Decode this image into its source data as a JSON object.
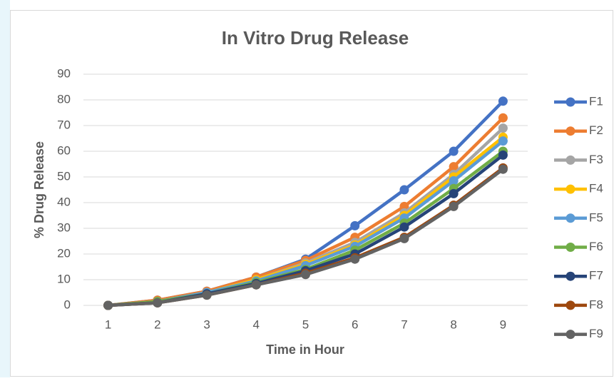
{
  "chart_data": {
    "type": "line",
    "title": "In Vitro Drug Release",
    "x_label": "Time in Hour",
    "y_label": "% Drug Release",
    "x": [
      1,
      2,
      3,
      4,
      5,
      6,
      7,
      8,
      9
    ],
    "xlim": [
      0.5,
      9.5
    ],
    "xticks": [
      1,
      2,
      3,
      4,
      5,
      6,
      7,
      8,
      9
    ],
    "ylim": [
      0,
      90
    ],
    "yticks": [
      0,
      10,
      20,
      30,
      40,
      50,
      60,
      70,
      80,
      90
    ],
    "grid": true,
    "legend": "right",
    "series": [
      {
        "name": "F1",
        "color": "#4472c4",
        "values": [
          0,
          2,
          5.5,
          11,
          18,
          31,
          45,
          60,
          79.5
        ]
      },
      {
        "name": "F2",
        "color": "#ed7d31",
        "values": [
          0,
          2,
          5.5,
          11,
          17.5,
          26.5,
          38.5,
          54,
          73
        ]
      },
      {
        "name": "F3",
        "color": "#a5a5a5",
        "values": [
          0,
          1.5,
          5,
          10,
          16.5,
          24.5,
          36,
          51,
          69
        ]
      },
      {
        "name": "F4",
        "color": "#ffc000",
        "values": [
          0,
          1.5,
          5,
          10,
          16,
          23.5,
          35,
          50,
          65.5
        ]
      },
      {
        "name": "F5",
        "color": "#5b9bd5",
        "values": [
          0,
          1.5,
          5,
          9.5,
          15.5,
          23,
          34,
          48.5,
          64
        ]
      },
      {
        "name": "F6",
        "color": "#70ad47",
        "values": [
          0,
          1.5,
          4.5,
          9,
          14,
          21.5,
          32,
          45.5,
          60
        ]
      },
      {
        "name": "F7",
        "color": "#264478",
        "values": [
          0,
          1,
          4.5,
          8.5,
          13.5,
          20,
          30.5,
          43.5,
          58.5
        ]
      },
      {
        "name": "F8",
        "color": "#9e480e",
        "values": [
          0,
          1,
          4,
          8,
          12.5,
          18.5,
          26.5,
          39,
          53.5
        ]
      },
      {
        "name": "F9",
        "color": "#636363",
        "values": [
          0,
          1,
          4,
          8,
          12,
          18,
          26,
          38.5,
          53
        ]
      }
    ]
  }
}
